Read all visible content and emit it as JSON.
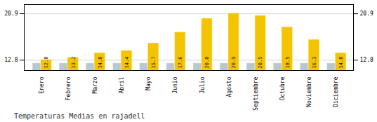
{
  "chart_data": {
    "type": "bar",
    "title": "Temperaturas Medias en rajadell",
    "categories": [
      "Enero",
      "Febrero",
      "Marzo",
      "Abril",
      "Mayo",
      "Junio",
      "Julio",
      "Agosto",
      "Septiembre",
      "Octubre",
      "Noviembre",
      "Diciembre"
    ],
    "series": [
      {
        "color": "#B8C8D0",
        "values": [
          12.2,
          12.2,
          12.2,
          12.2,
          12.2,
          12.2,
          12.2,
          12.2,
          12.2,
          12.2,
          12.2,
          12.2
        ]
      },
      {
        "color": "#F5C400",
        "values": [
          12.8,
          13.2,
          14.0,
          14.4,
          15.7,
          17.6,
          20.0,
          20.9,
          20.5,
          18.5,
          16.3,
          14.0
        ],
        "value_labels": [
          "12.8",
          "13.2",
          "14.0",
          "14.4",
          "15.7",
          "17.6",
          "20.0",
          "20.9",
          "20.5",
          "18.5",
          "16.3",
          "14.0"
        ]
      }
    ],
    "ylim": [
      11.0,
      22.5
    ],
    "yticks": [
      12.8,
      20.9
    ],
    "y2lim": [
      11.0,
      22.5
    ],
    "y2ticks": [
      12.8,
      20.9
    ],
    "grid": true,
    "data_labels": true
  }
}
